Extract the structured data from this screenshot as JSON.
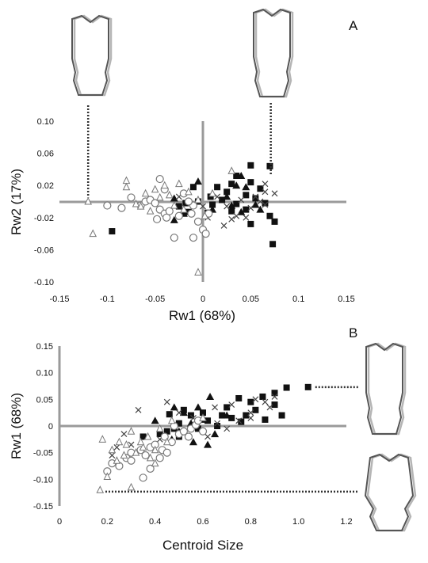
{
  "colors": {
    "axis": "#9a9a9a",
    "marker": "#111111",
    "hollow_marker": "#777777",
    "outline_dark": "#555555",
    "outline_light": "#b5b5b5"
  },
  "chart_data": [
    {
      "id": "A",
      "type": "scatter",
      "panel_label": "A",
      "xlabel": "Rw1 (68%)",
      "ylabel": "Rw2 (17%)",
      "xlim": [
        -0.15,
        0.15
      ],
      "ylim": [
        -0.1,
        0.1
      ],
      "xticks": [
        "-0.15",
        "-0.1",
        "-0.05",
        "0",
        "0.05",
        "0.1",
        "0.15"
      ],
      "yticks": [
        "0.10",
        "0.06",
        "0.02",
        "-0.02",
        "-0.06",
        "-0.10"
      ],
      "grid": false,
      "series": [
        {
          "marker": "filled-square",
          "points": [
            [
              0.05,
              0.045
            ],
            [
              0.07,
              0.044
            ],
            [
              0.035,
              0.032
            ],
            [
              0.05,
              0.024
            ],
            [
              0.03,
              0.022
            ],
            [
              0.015,
              0.018
            ],
            [
              -0.01,
              0.018
            ],
            [
              0.06,
              0.016
            ],
            [
              0.025,
              0.012
            ],
            [
              0.045,
              0.008
            ],
            [
              0.008,
              0.006
            ],
            [
              0.055,
              0.004
            ],
            [
              0.02,
              0.002
            ],
            [
              -0.005,
              0.0
            ],
            [
              -0.018,
              -0.002
            ],
            [
              0.035,
              -0.003
            ],
            [
              0.065,
              -0.002
            ],
            [
              -0.025,
              -0.006
            ],
            [
              0.01,
              -0.004
            ],
            [
              0.045,
              -0.01
            ],
            [
              0.03,
              -0.012
            ],
            [
              0.07,
              -0.018
            ],
            [
              -0.015,
              -0.013
            ],
            [
              0.075,
              -0.025
            ],
            [
              -0.095,
              -0.037
            ],
            [
              0.073,
              -0.053
            ],
            [
              0.05,
              -0.028
            ],
            [
              0.005,
              -0.014
            ]
          ]
        },
        {
          "marker": "filled-triangle",
          "points": [
            [
              0.04,
              0.032
            ],
            [
              0.035,
              0.02
            ],
            [
              -0.005,
              0.025
            ],
            [
              0.045,
              0.018
            ],
            [
              0.025,
              0.006
            ],
            [
              0.055,
              -0.004
            ],
            [
              0.03,
              -0.005
            ],
            [
              0.01,
              -0.01
            ],
            [
              -0.02,
              -0.015
            ],
            [
              0.04,
              -0.013
            ],
            [
              -0.03,
              -0.023
            ],
            [
              0.06,
              -0.01
            ],
            [
              -0.03,
              0.004
            ]
          ]
        },
        {
          "marker": "cross",
          "points": [
            [
              0.065,
              0.022
            ],
            [
              0.065,
              0.012
            ],
            [
              0.055,
              0.006
            ],
            [
              0.06,
              0.0
            ],
            [
              0.04,
              0.002
            ],
            [
              0.025,
              -0.006
            ],
            [
              0.05,
              -0.008
            ],
            [
              0.035,
              -0.018
            ],
            [
              0.03,
              -0.022
            ],
            [
              0.0,
              -0.006
            ],
            [
              0.045,
              -0.02
            ],
            [
              0.065,
              -0.004
            ],
            [
              -0.025,
              0.006
            ],
            [
              0.022,
              -0.03
            ],
            [
              0.015,
              0.006
            ],
            [
              0.075,
              0.01
            ],
            [
              0.005,
              -0.02
            ]
          ]
        },
        {
          "marker": "open-circle",
          "points": [
            [
              -0.045,
              0.028
            ],
            [
              -0.04,
              0.015
            ],
            [
              -0.075,
              0.005
            ],
            [
              -0.1,
              -0.005
            ],
            [
              -0.085,
              -0.008
            ],
            [
              -0.065,
              -0.005
            ],
            [
              -0.06,
              0.0
            ],
            [
              -0.055,
              0.002
            ],
            [
              -0.05,
              -0.002
            ],
            [
              -0.045,
              -0.01
            ],
            [
              -0.04,
              -0.015
            ],
            [
              -0.038,
              -0.02
            ],
            [
              -0.048,
              -0.022
            ],
            [
              -0.025,
              -0.018
            ],
            [
              -0.035,
              -0.012
            ],
            [
              -0.02,
              0.01
            ],
            [
              -0.01,
              -0.005
            ],
            [
              -0.005,
              -0.025
            ],
            [
              0.0,
              -0.035
            ],
            [
              0.003,
              -0.04
            ],
            [
              -0.012,
              -0.015
            ],
            [
              -0.015,
              0.0
            ],
            [
              -0.01,
              -0.045
            ],
            [
              0.006,
              -0.015
            ],
            [
              -0.03,
              -0.045
            ]
          ]
        },
        {
          "marker": "open-triangle",
          "points": [
            [
              -0.12,
              0.0
            ],
            [
              -0.115,
              -0.04
            ],
            [
              -0.08,
              0.026
            ],
            [
              -0.08,
              0.018
            ],
            [
              -0.07,
              -0.003
            ],
            [
              -0.065,
              -0.006
            ],
            [
              -0.055,
              -0.012
            ],
            [
              -0.05,
              0.015
            ],
            [
              -0.045,
              0.005
            ],
            [
              -0.06,
              0.01
            ],
            [
              -0.04,
              0.02
            ],
            [
              -0.03,
              -0.005
            ],
            [
              -0.02,
              -0.01
            ],
            [
              -0.015,
              0.012
            ],
            [
              -0.005,
              0.002
            ],
            [
              -0.025,
              0.022
            ],
            [
              -0.005,
              -0.088
            ],
            [
              0.03,
              0.038
            ],
            [
              0.01,
              0.01
            ],
            [
              -0.035,
              0.008
            ],
            [
              0.002,
              -0.018
            ]
          ]
        }
      ],
      "shape_outlines": [
        {
          "name": "negative-rw1-shape",
          "anchor": [
            -0.12,
            0.005
          ]
        },
        {
          "name": "positive-rw1-shape",
          "anchor": [
            0.071,
            0.033
          ]
        }
      ]
    },
    {
      "id": "B",
      "type": "scatter",
      "panel_label": "B",
      "xlabel": "Centroid Size",
      "ylabel": "Rw1 (68%)",
      "xlim": [
        0,
        1.2
      ],
      "ylim": [
        -0.15,
        0.15
      ],
      "xticks": [
        "0",
        "0.2",
        "0.4",
        "0.6",
        "0.8",
        "1.0",
        "1.2"
      ],
      "yticks": [
        "0.15",
        "0.10",
        "0.05",
        "0",
        "-0.05",
        "-0.10",
        "-0.15"
      ],
      "grid": false,
      "series": [
        {
          "marker": "filled-square",
          "points": [
            [
              1.04,
              0.073
            ],
            [
              0.95,
              0.072
            ],
            [
              0.9,
              0.062
            ],
            [
              0.85,
              0.055
            ],
            [
              0.8,
              0.045
            ],
            [
              0.75,
              0.052
            ],
            [
              0.7,
              0.035
            ],
            [
              0.82,
              0.03
            ],
            [
              0.78,
              0.02
            ],
            [
              0.72,
              0.015
            ],
            [
              0.68,
              0.02
            ],
            [
              0.9,
              0.04
            ],
            [
              0.93,
              0.02
            ],
            [
              0.6,
              0.025
            ],
            [
              0.55,
              0.02
            ],
            [
              0.5,
              0.005
            ],
            [
              0.48,
              -0.005
            ],
            [
              0.45,
              -0.01
            ],
            [
              0.42,
              -0.015
            ],
            [
              0.62,
              0.01
            ],
            [
              0.66,
              0.0
            ],
            [
              0.58,
              -0.005
            ],
            [
              0.52,
              0.03
            ],
            [
              0.46,
              0.022
            ],
            [
              0.35,
              -0.02
            ],
            [
              0.5,
              -0.02
            ],
            [
              0.86,
              0.012
            ],
            [
              0.76,
              0.008
            ]
          ]
        },
        {
          "marker": "filled-triangle",
          "points": [
            [
              0.63,
              0.055
            ],
            [
              0.48,
              0.035
            ],
            [
              0.52,
              0.025
            ],
            [
              0.6,
              0.012
            ],
            [
              0.55,
              0.005
            ],
            [
              0.5,
              -0.01
            ],
            [
              0.47,
              -0.025
            ],
            [
              0.56,
              -0.03
            ],
            [
              0.65,
              -0.015
            ],
            [
              0.4,
              0.01
            ],
            [
              0.7,
              0.02
            ],
            [
              0.58,
              0.035
            ],
            [
              0.62,
              -0.035
            ]
          ]
        },
        {
          "marker": "cross",
          "points": [
            [
              0.33,
              0.03
            ],
            [
              0.45,
              0.045
            ],
            [
              0.5,
              0.025
            ],
            [
              0.56,
              0.015
            ],
            [
              0.65,
              0.035
            ],
            [
              0.72,
              0.04
            ],
            [
              0.8,
              0.025
            ],
            [
              0.86,
              0.045
            ],
            [
              0.88,
              0.035
            ],
            [
              0.9,
              0.055
            ],
            [
              0.75,
              0.01
            ],
            [
              0.6,
              -0.01
            ],
            [
              0.62,
              -0.02
            ],
            [
              0.42,
              -0.025
            ],
            [
              0.3,
              -0.035
            ],
            [
              0.27,
              -0.015
            ],
            [
              0.22,
              -0.055
            ],
            [
              0.24,
              -0.04
            ],
            [
              0.66,
              0.005
            ],
            [
              0.82,
              0.05
            ],
            [
              0.7,
              -0.005
            ],
            [
              0.8,
              0.015
            ]
          ]
        },
        {
          "marker": "open-circle",
          "points": [
            [
              0.2,
              -0.085
            ],
            [
              0.22,
              -0.07
            ],
            [
              0.25,
              -0.075
            ],
            [
              0.28,
              -0.06
            ],
            [
              0.3,
              -0.065
            ],
            [
              0.34,
              -0.045
            ],
            [
              0.36,
              -0.055
            ],
            [
              0.38,
              -0.04
            ],
            [
              0.4,
              -0.035
            ],
            [
              0.43,
              -0.045
            ],
            [
              0.45,
              -0.05
            ],
            [
              0.47,
              -0.03
            ],
            [
              0.5,
              -0.015
            ],
            [
              0.52,
              -0.01
            ],
            [
              0.55,
              -0.005
            ],
            [
              0.57,
              0.002
            ],
            [
              0.6,
              -0.01
            ],
            [
              0.42,
              -0.06
            ],
            [
              0.38,
              -0.08
            ],
            [
              0.35,
              -0.097
            ],
            [
              0.3,
              -0.05
            ],
            [
              0.48,
              0.0
            ],
            [
              0.44,
              -0.02
            ],
            [
              0.54,
              -0.02
            ],
            [
              0.58,
              0.01
            ]
          ]
        },
        {
          "marker": "open-triangle",
          "points": [
            [
              0.17,
              -0.12
            ],
            [
              0.2,
              -0.095
            ],
            [
              0.18,
              -0.025
            ],
            [
              0.22,
              -0.045
            ],
            [
              0.25,
              -0.03
            ],
            [
              0.27,
              -0.055
            ],
            [
              0.3,
              -0.01
            ],
            [
              0.32,
              -0.05
            ],
            [
              0.35,
              -0.04
            ],
            [
              0.37,
              -0.02
            ],
            [
              0.38,
              -0.06
            ],
            [
              0.4,
              -0.045
            ],
            [
              0.42,
              -0.005
            ],
            [
              0.3,
              -0.115
            ],
            [
              0.34,
              -0.03
            ],
            [
              0.45,
              -0.03
            ],
            [
              0.6,
              0.015
            ],
            [
              0.47,
              0.01
            ],
            [
              0.24,
              -0.065
            ],
            [
              0.28,
              -0.035
            ],
            [
              0.4,
              -0.07
            ]
          ]
        }
      ],
      "shape_outlines": [
        {
          "name": "high-rw1-shape",
          "anchor": [
            1.07,
            0.073
          ]
        },
        {
          "name": "low-rw1-shape",
          "anchor": [
            1.07,
            -0.123
          ]
        }
      ]
    }
  ]
}
